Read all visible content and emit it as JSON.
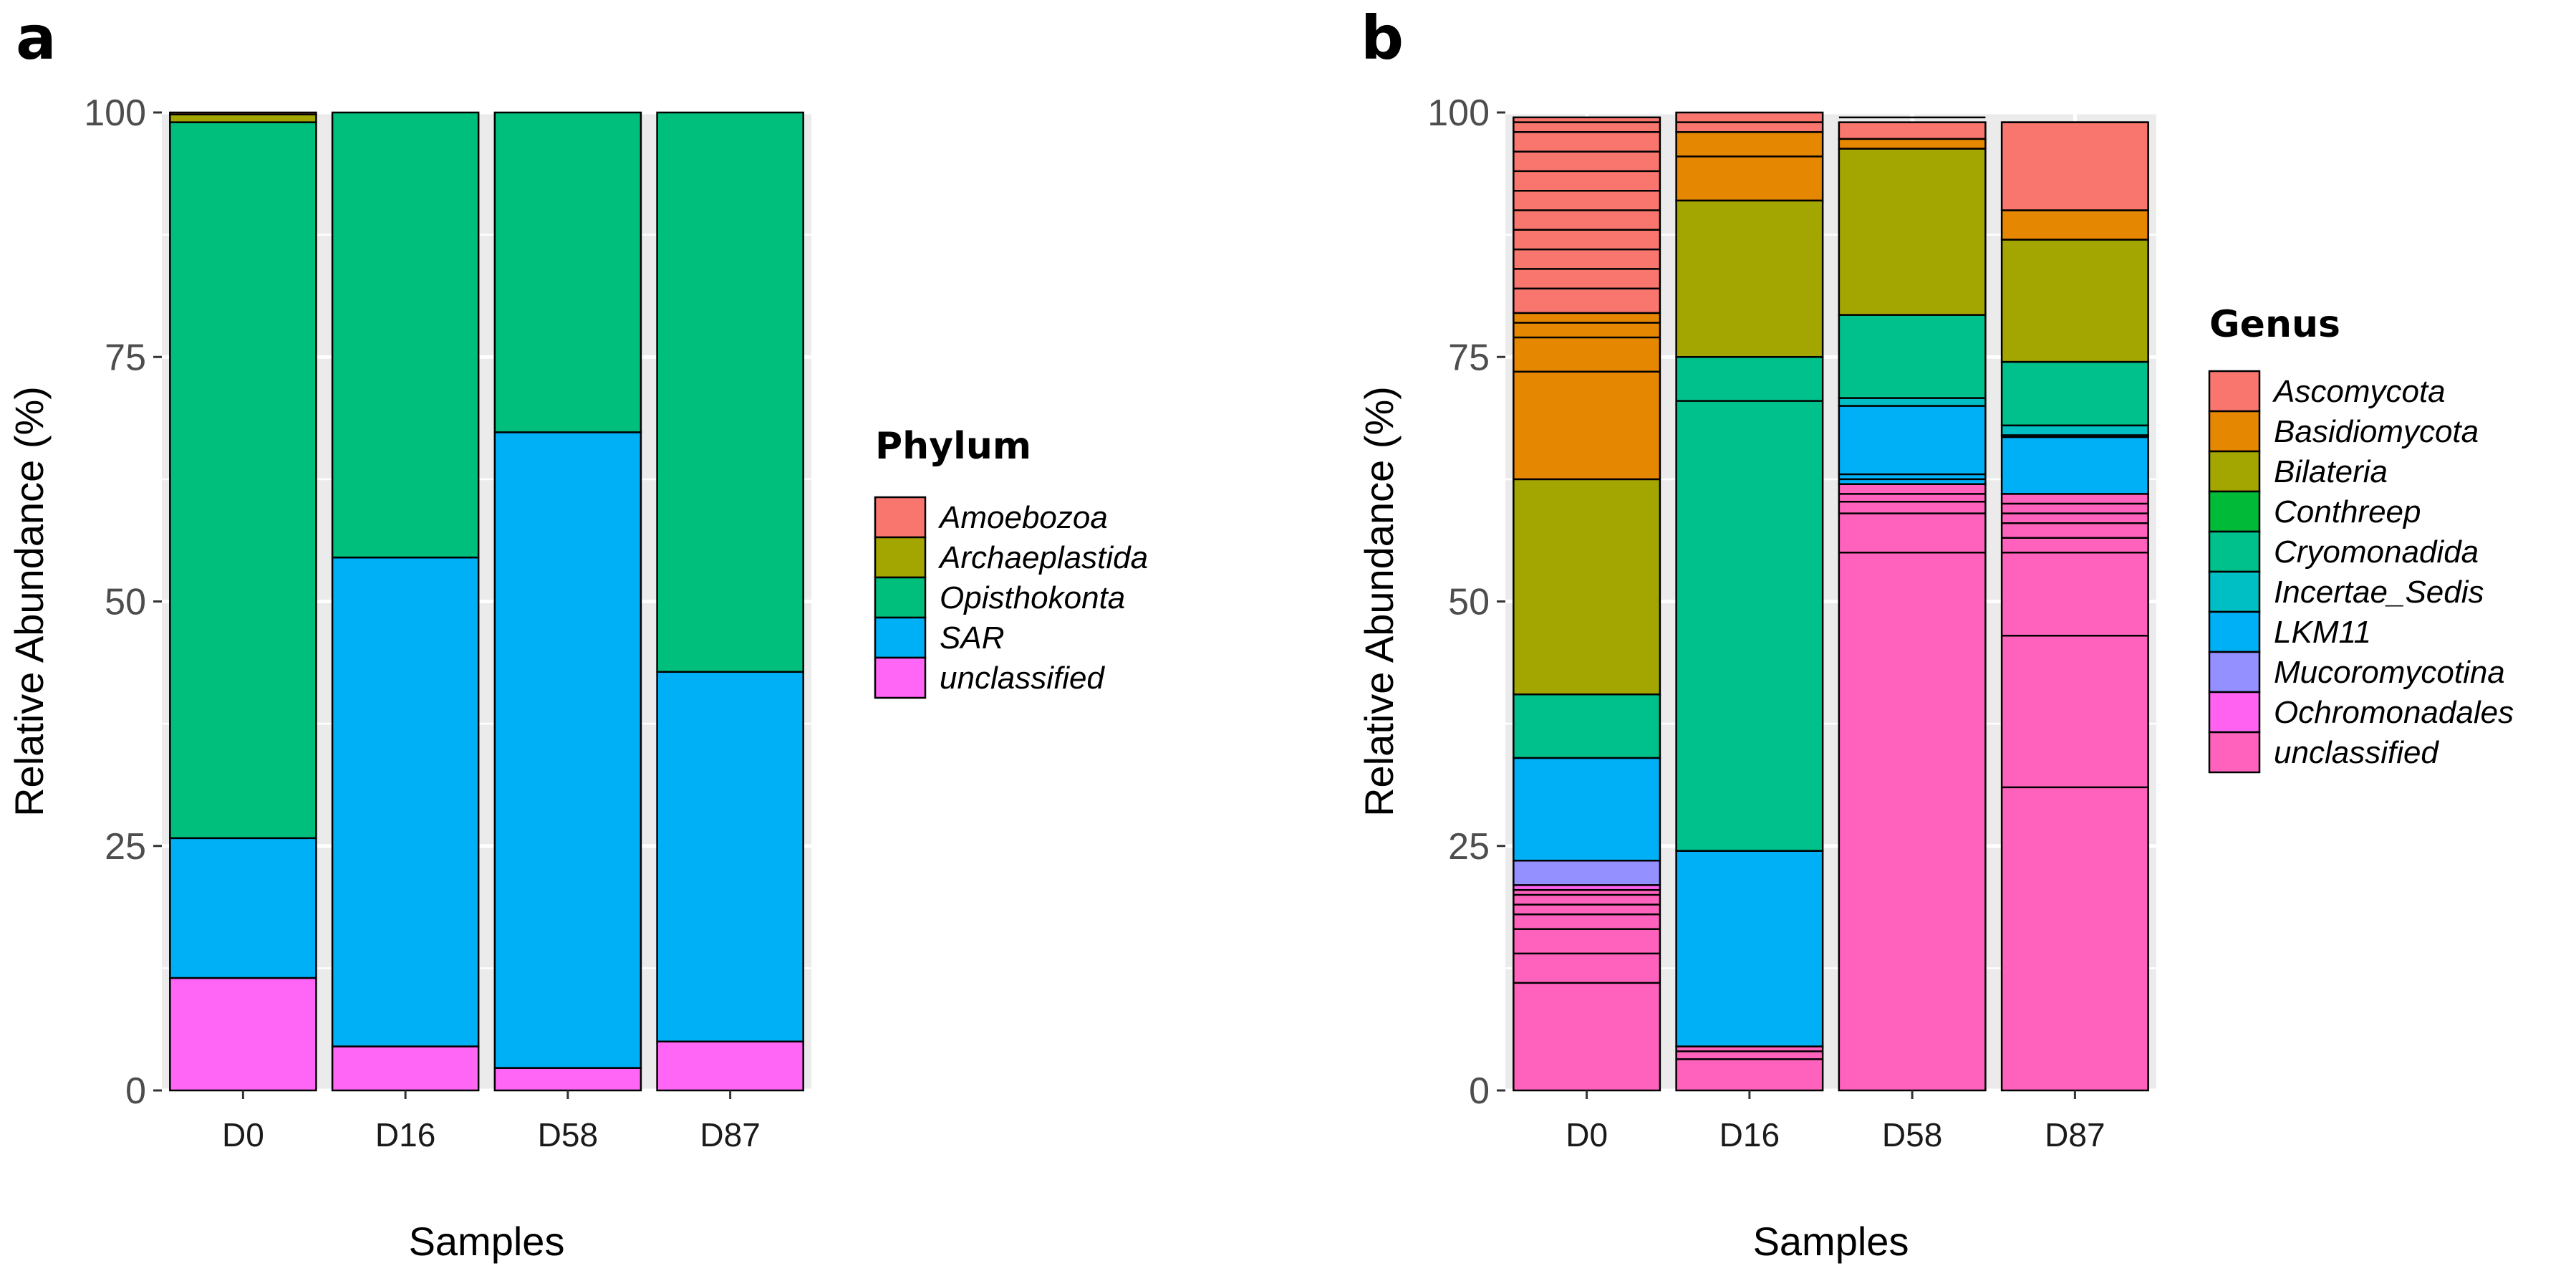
{
  "chart_data": [
    {
      "panel_label": "a",
      "type": "bar",
      "stacked": true,
      "title": "",
      "xlabel": "Samples",
      "ylabel": "Relative Abundance (%)",
      "ylim": [
        0,
        100
      ],
      "yticks": [
        "0",
        "25",
        "50",
        "75",
        "100"
      ],
      "grid": true,
      "legend_position": "right",
      "categories": [
        "D0",
        "D16",
        "D58",
        "D87"
      ],
      "legend": {
        "title": "Phylum",
        "entries": [
          {
            "name": "Amoebozoa",
            "color": "#F8766D"
          },
          {
            "name": "Archaeplastida",
            "color": "#A3A500"
          },
          {
            "name": "Opisthokonta",
            "color": "#00BF7D"
          },
          {
            "name": "SAR",
            "color": "#00B0F6"
          },
          {
            "name": "unclassified",
            "color": "#FF66F5"
          }
        ]
      },
      "series": [
        {
          "name": "unclassified",
          "color": "#FF66F5",
          "values": [
            11.5,
            4.5,
            2.3,
            5.0
          ]
        },
        {
          "name": "SAR",
          "color": "#00B0F6",
          "values": [
            14.3,
            50.0,
            65.0,
            37.8
          ]
        },
        {
          "name": "Opisthokonta",
          "color": "#00BF7D",
          "values": [
            73.2,
            45.5,
            32.7,
            57.2
          ]
        },
        {
          "name": "Archaeplastida",
          "color": "#A3A500",
          "values": [
            0.8,
            0.0,
            0.0,
            0.0
          ]
        },
        {
          "name": "Amoebozoa",
          "color": "#F8766D",
          "values": [
            0.2,
            0.0,
            0.0,
            0.0
          ]
        }
      ]
    },
    {
      "panel_label": "b",
      "type": "bar",
      "stacked": true,
      "title": "",
      "xlabel": "Samples",
      "ylabel": "Relative Abundance (%)",
      "ylim": [
        0,
        100
      ],
      "yticks": [
        "0",
        "25",
        "50",
        "75",
        "100"
      ],
      "grid": true,
      "legend_position": "right",
      "categories": [
        "D0",
        "D16",
        "D58",
        "D87"
      ],
      "legend": {
        "title": "Genus",
        "entries": [
          {
            "name": "Ascomycota",
            "color": "#F8766D"
          },
          {
            "name": "Basidiomycota",
            "color": "#E58700"
          },
          {
            "name": "Bilateria",
            "color": "#A3A500"
          },
          {
            "name": "Conthreep",
            "color": "#00BA38"
          },
          {
            "name": "Cryomonadida",
            "color": "#00C08B"
          },
          {
            "name": "Incertae_Sedis",
            "color": "#00BFC4"
          },
          {
            "name": "LKM11",
            "color": "#00B0F6"
          },
          {
            "name": "Mucoromycotina",
            "color": "#9590FF"
          },
          {
            "name": "Ochromonadales",
            "color": "#FF62F0"
          },
          {
            "name": "unclassified",
            "color": "#FF62BC"
          }
        ]
      },
      "series": [
        {
          "name": "unclassified",
          "color": "#FF62BC",
          "values": [
            20.5,
            4.5,
            62.0,
            61.0
          ],
          "splits": [
            [
              11.0,
              14.0,
              16.5,
              18.0,
              19.0,
              20.0
            ],
            [
              3.2,
              4.0
            ],
            [
              55.0,
              59.0,
              60.2,
              61.0
            ],
            [
              31.0,
              46.5,
              55.0,
              56.5,
              58.0,
              59.0,
              60.0
            ]
          ]
        },
        {
          "name": "Ochromonadales",
          "color": "#FF62F0",
          "values": [
            0.5,
            0.0,
            0.0,
            0.0
          ]
        },
        {
          "name": "Mucoromycotina",
          "color": "#9590FF",
          "values": [
            2.5,
            0.0,
            0.0,
            0.0
          ]
        },
        {
          "name": "LKM11",
          "color": "#00B0F6",
          "values": [
            10.5,
            20.0,
            8.0,
            6.0
          ],
          "splits": [
            [],
            [
              24.8,
              25.3
            ],
            [
              62.5,
              63.0
            ],
            [
              66.8
            ]
          ]
        },
        {
          "name": "Incertae_Sedis",
          "color": "#00BFC4",
          "values": [
            0.0,
            0.0,
            0.8,
            1.0
          ]
        },
        {
          "name": "Cryomonadida",
          "color": "#00C08B",
          "values": [
            6.5,
            50.5,
            8.5,
            6.5
          ],
          "splits": [
            [],
            [
              70.5
            ],
            [],
            []
          ]
        },
        {
          "name": "Conthreep",
          "color": "#00BA38",
          "values": [
            0.0,
            0.0,
            0.0,
            0.0
          ]
        },
        {
          "name": "Bilateria",
          "color": "#A3A500",
          "values": [
            22.0,
            16.0,
            17.0,
            12.5
          ],
          "splits": [
            [],
            [],
            [
              96.5
            ],
            []
          ]
        },
        {
          "name": "Basidiomycota",
          "color": "#E58700",
          "values": [
            17.0,
            7.0,
            1.0,
            3.0
          ],
          "splits": [
            [
              73.5,
              77.0,
              78.5,
              79.5
            ],
            [
              95.5,
              98.0
            ],
            [],
            [
              90.5
            ]
          ]
        },
        {
          "name": "Ascomycota",
          "color": "#F8766D",
          "values": [
            20.0,
            2.0,
            1.7,
            9.0
          ],
          "splits": [
            [
              82.0,
              84.0,
              86.0,
              88.0,
              90.0,
              92.0,
              94.0,
              96.0,
              98.0,
              99.0
            ],
            [
              99.0
            ],
            [
              99.5
            ],
            [
              99.0
            ]
          ]
        }
      ]
    }
  ]
}
